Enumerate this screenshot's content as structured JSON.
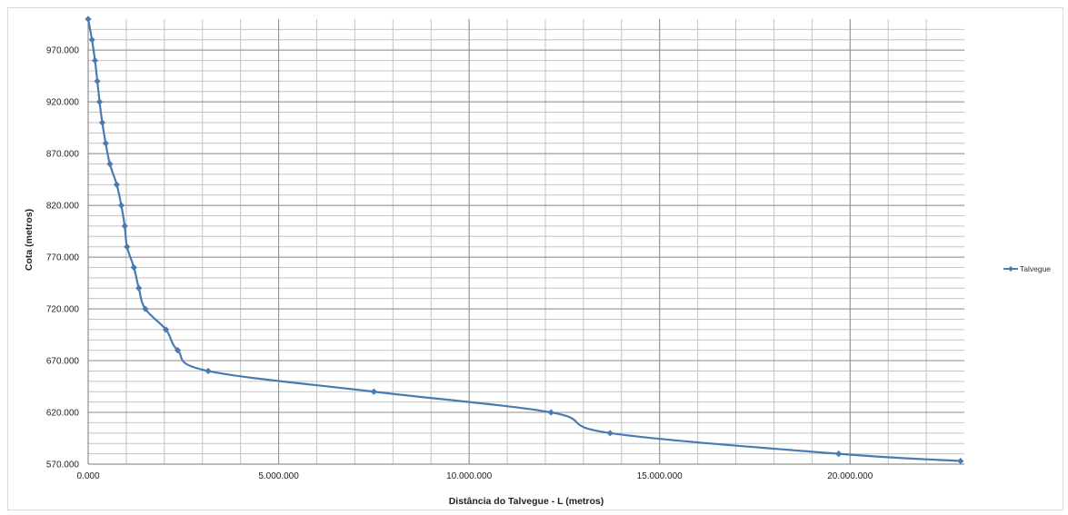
{
  "chart_data": {
    "type": "line",
    "title": "",
    "xlabel": "Distância do Talvegue - L (metros)",
    "ylabel": "Cota (metros)",
    "xlim": [
      0,
      23000
    ],
    "ylim": [
      570,
      1000
    ],
    "x_ticks": [
      0,
      5000,
      10000,
      15000,
      20000
    ],
    "x_tick_labels": [
      "0.000",
      "5.000.000",
      "10.000.000",
      "15.000.000",
      "20.000.000"
    ],
    "y_ticks": [
      570,
      620,
      670,
      720,
      770,
      820,
      870,
      920,
      970
    ],
    "y_tick_labels": [
      "570.000",
      "620.000",
      "670.000",
      "720.000",
      "770.000",
      "820.000",
      "870.000",
      "920.000",
      "970.000"
    ],
    "grid": true,
    "smooth": true,
    "legend_position": "right",
    "series": [
      {
        "name": "Talvegue",
        "color": "#4a7bb0",
        "marker": "diamond",
        "x": [
          0,
          100,
          180,
          240,
          300,
          370,
          460,
          570,
          750,
          870,
          960,
          1020,
          1200,
          1330,
          1500,
          2040,
          2350,
          3150,
          7500,
          12150,
          13700,
          19700,
          22900
        ],
        "y": [
          1000,
          980,
          960,
          940,
          920,
          900,
          880,
          860,
          840,
          820,
          800,
          780,
          760,
          740,
          720,
          700,
          680,
          660,
          640,
          620,
          600,
          580,
          573
        ]
      }
    ]
  }
}
